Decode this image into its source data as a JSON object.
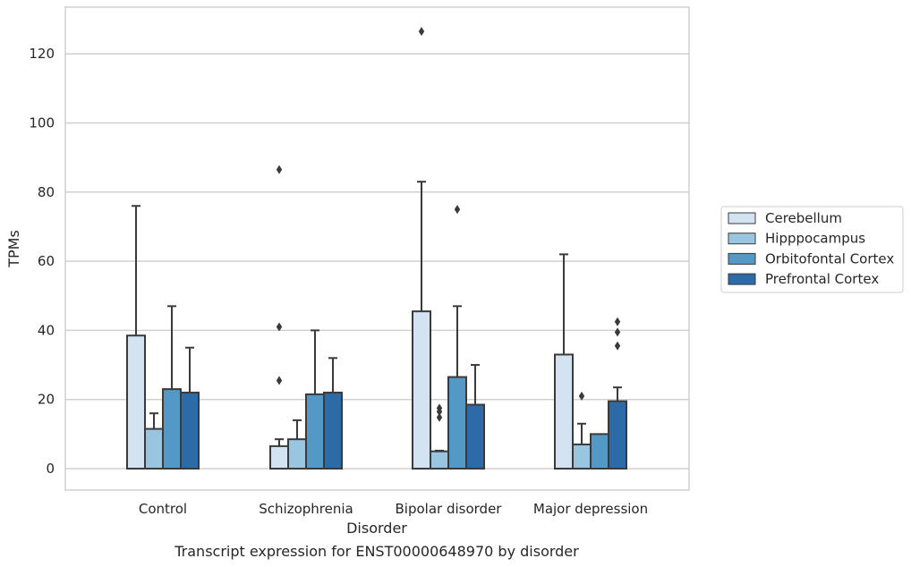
{
  "colors": {
    "Cerebellum": "#d3e3f2",
    "Hipppocampus": "#9ac5e0",
    "Orbitofontal Cortex": "#5499c6",
    "Prefrontal Cortex": "#2d6aa8",
    "edge": "#3a3a3a",
    "grid": "#d0d0d0"
  },
  "chart_data": {
    "type": "bar",
    "caption": "Transcript expression for ENST00000648970 by disorder",
    "xlabel": "Disorder",
    "ylabel": "TPMs",
    "ylim": [
      -6,
      133
    ],
    "yticks": [
      0,
      20,
      40,
      60,
      80,
      100,
      120
    ],
    "grid": true,
    "legend_position": "right",
    "categories": [
      "Control",
      "Schizophrenia",
      "Bipolar disorder",
      "Major depression"
    ],
    "series": [
      {
        "name": "Cerebellum",
        "values": [
          38.5,
          6.5,
          45.5,
          33
        ],
        "whisker_top": [
          76,
          8.5,
          83,
          62
        ],
        "outliers": [
          [],
          [
            86.5,
            41,
            25.5
          ],
          [
            126.5
          ],
          []
        ]
      },
      {
        "name": "Hipppocampus",
        "values": [
          11.5,
          8.5,
          5,
          7
        ],
        "whisker_top": [
          16,
          14,
          5.2,
          13
        ],
        "outliers": [
          [],
          [],
          [
            17.5,
            16.5,
            14.8
          ],
          [
            21
          ]
        ]
      },
      {
        "name": "Orbitofontal Cortex",
        "values": [
          23,
          21.5,
          26.5,
          10
        ],
        "whisker_top": [
          47,
          40,
          47,
          10
        ],
        "outliers": [
          [],
          [],
          [
            75
          ],
          []
        ]
      },
      {
        "name": "Prefrontal Cortex",
        "values": [
          22,
          22,
          18.5,
          19.5
        ],
        "whisker_top": [
          35,
          32,
          30,
          23.5
        ],
        "outliers": [
          [],
          [],
          [],
          [
            42.5,
            39.5,
            35.5
          ]
        ]
      }
    ]
  }
}
